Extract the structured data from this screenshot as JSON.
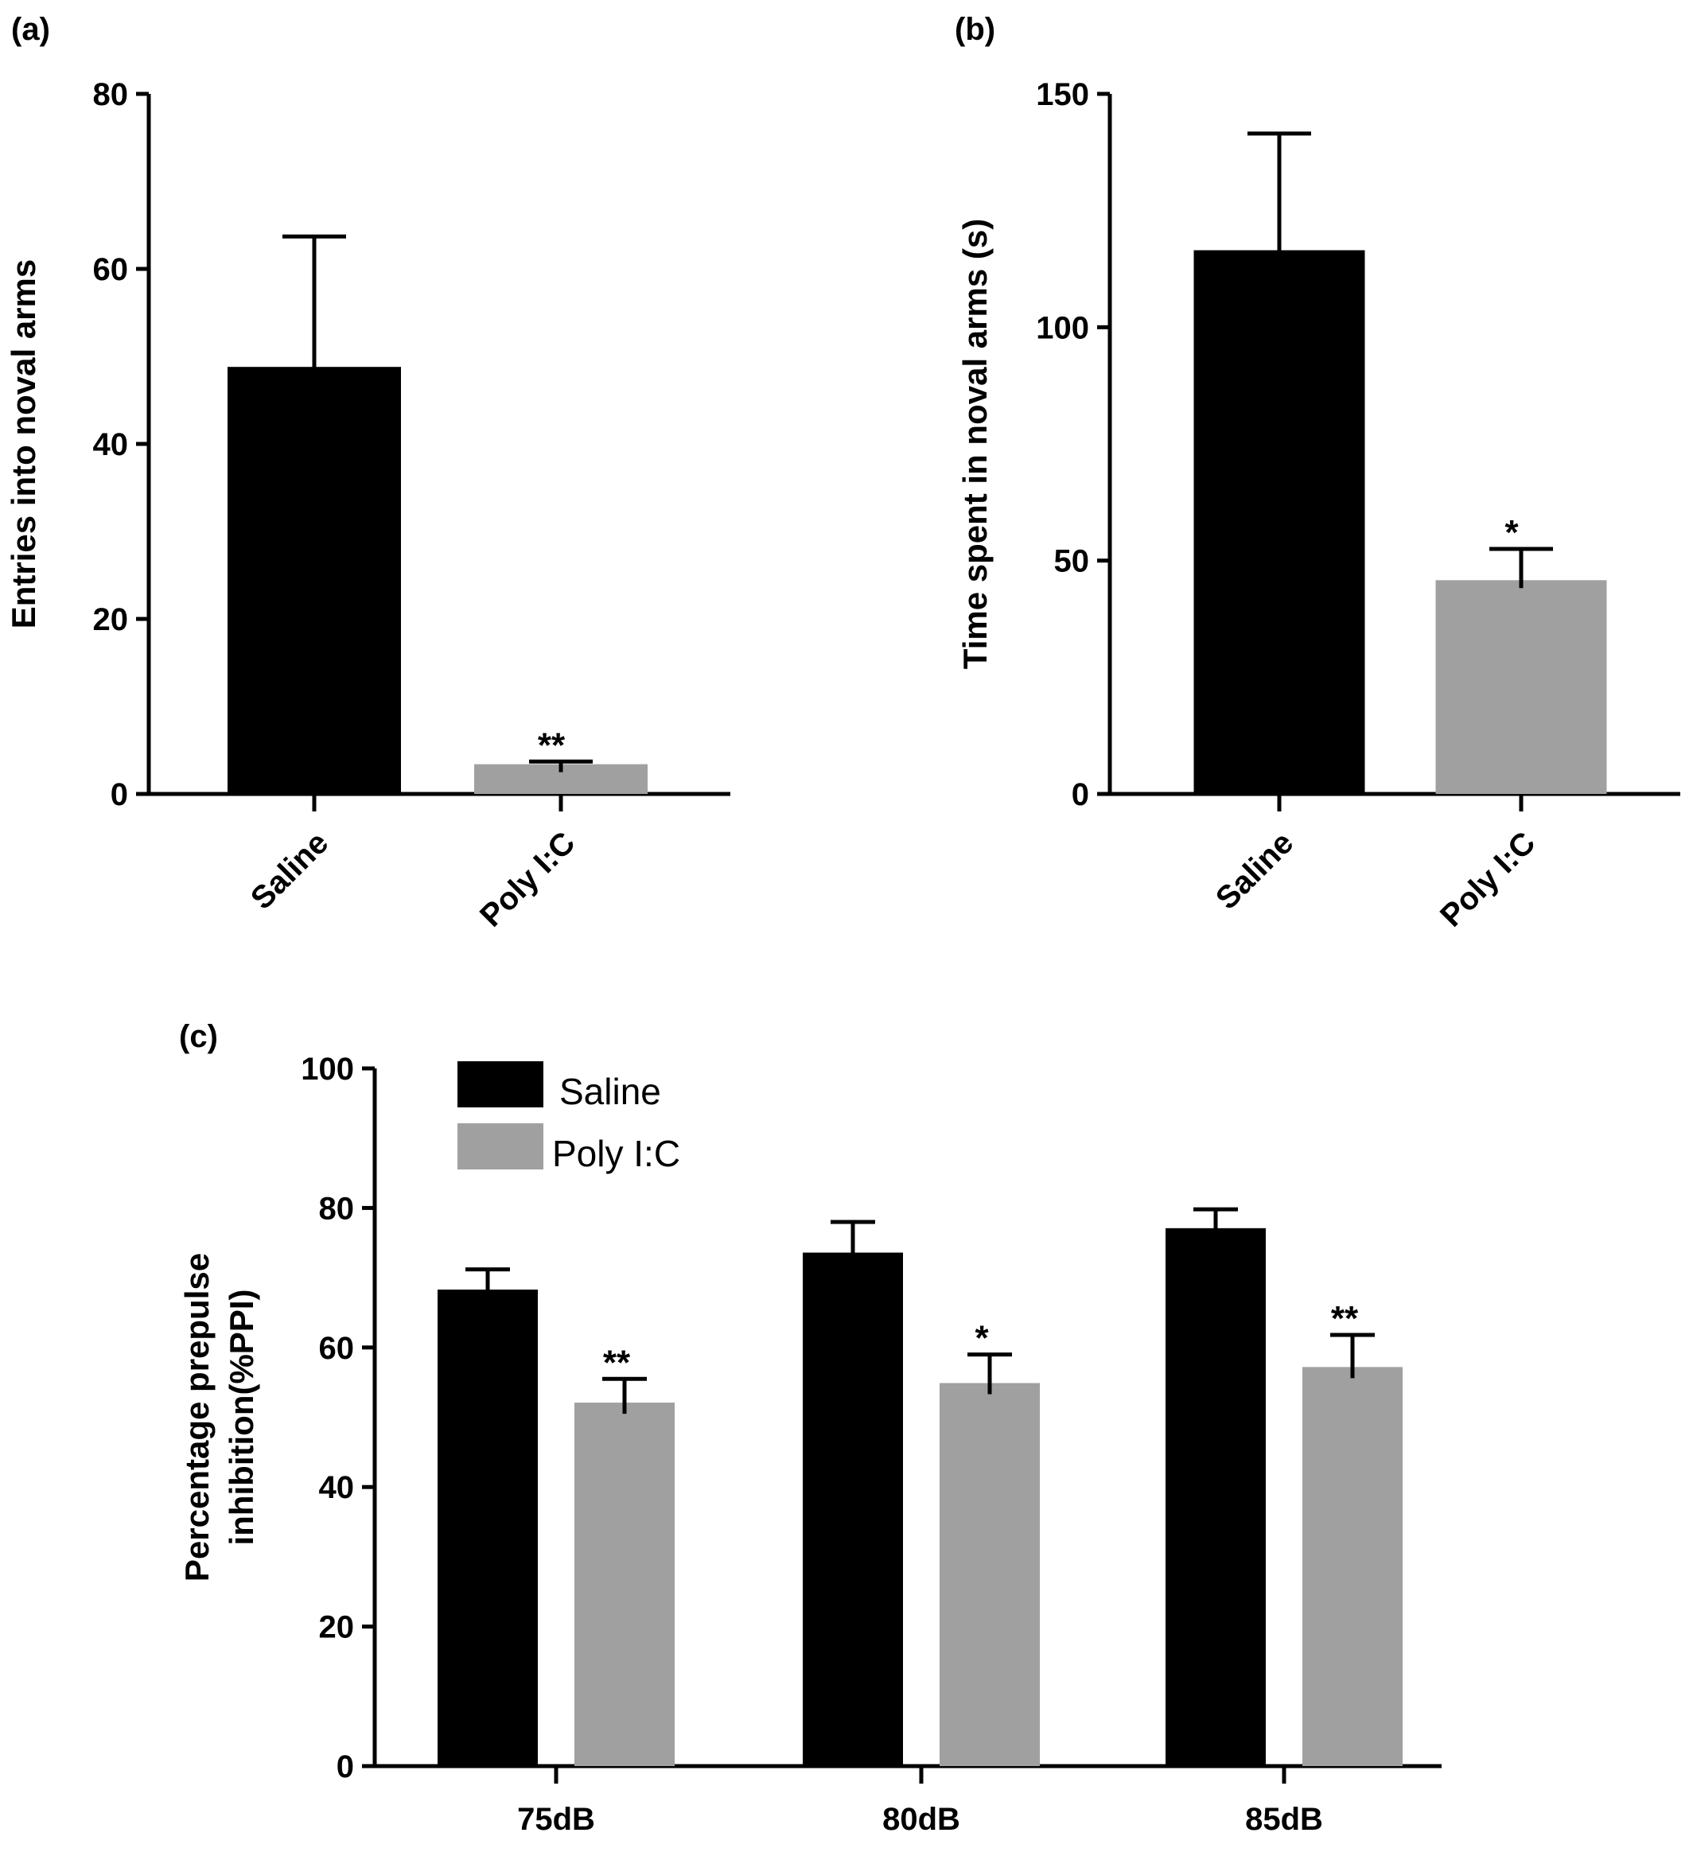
{
  "colors": {
    "saline": "#000000",
    "polyic": "#a0a0a0"
  },
  "chart_data": [
    {
      "panel": "(a)",
      "type": "bar",
      "categories": [
        "Saline",
        "Poly I:C"
      ],
      "values": [
        48.8,
        3.4
      ],
      "errors": [
        14.9,
        0.3
      ],
      "significance": [
        "",
        "**"
      ],
      "ylabel": "Entries into noval arms",
      "ylim": [
        0,
        80
      ],
      "yticks": [
        0,
        20,
        40,
        60,
        80
      ]
    },
    {
      "panel": "(b)",
      "type": "bar",
      "categories": [
        "Saline",
        "Poly I:C"
      ],
      "values": [
        116.5,
        45.8
      ],
      "errors": [
        25.0,
        6.7
      ],
      "significance": [
        "",
        "*"
      ],
      "ylabel": "Time spent in noval arms (s)",
      "ylim": [
        0,
        150
      ],
      "yticks": [
        0,
        50,
        100,
        150
      ]
    },
    {
      "panel": "(c)",
      "type": "bar",
      "categories": [
        "75dB",
        "80dB",
        "85dB"
      ],
      "series": [
        {
          "name": "Saline",
          "values": [
            68.3,
            73.6,
            77.1
          ],
          "errors": [
            2.9,
            4.4,
            2.7
          ]
        },
        {
          "name": "Poly I:C",
          "values": [
            52.1,
            54.9,
            57.2
          ],
          "errors": [
            3.4,
            4.1,
            4.6
          ]
        }
      ],
      "significance": [
        "**",
        "*",
        "**"
      ],
      "ylabel": [
        "Percentage prepulse",
        "inhibition(%PPI)"
      ],
      "ylim": [
        0,
        100
      ],
      "yticks": [
        0,
        20,
        40,
        60,
        80,
        100
      ],
      "legend": "top-left"
    }
  ]
}
